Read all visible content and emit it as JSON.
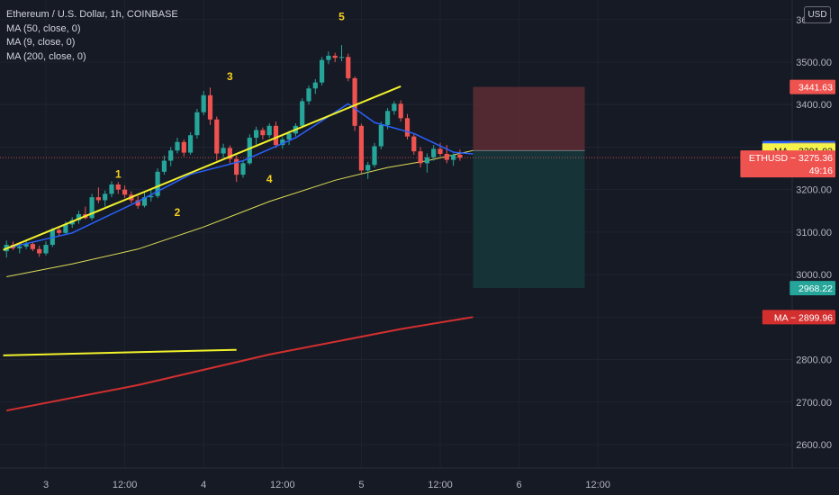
{
  "legend": {
    "title": "Ethereum / U.S. Dollar, 1h, COINBASE",
    "ma1": "MA (50, close, 0)",
    "ma2": "MA (9, close, 0)",
    "ma3": "MA (200, close, 0)"
  },
  "currency_button": "USD",
  "colors": {
    "background": "#161a25",
    "grid": "#1f2330",
    "text": "#b2b5be",
    "up": "#26a69a",
    "down": "#ef5350",
    "ma9": "#2962ff",
    "ma50": "#dcdc54",
    "ma200": "#d32f2f",
    "trendline": "#f2f22a",
    "wave_label": "#f5d020",
    "stop_zone": "#5d2d33",
    "target_zone": "#16363a"
  },
  "chart_data": {
    "type": "candlestick",
    "symbol": "ETHUSD",
    "interval": "1h",
    "exchange": "COINBASE",
    "ylim": [
      2550,
      3620
    ],
    "y_ticks": [
      {
        "label": "3600.00",
        "value": 3600
      },
      {
        "label": "3500.00",
        "value": 3500
      },
      {
        "label": "3400.00",
        "value": 3400
      },
      {
        "label": "3200.00",
        "value": 3200
      },
      {
        "label": "3100.00",
        "value": 3100
      },
      {
        "label": "3000.00",
        "value": 3000
      },
      {
        "label": "2800.00",
        "value": 2800
      },
      {
        "label": "2700.00",
        "value": 2700
      },
      {
        "label": "2600.00",
        "value": 2600
      }
    ],
    "x_ticks": [
      {
        "label": "3",
        "bar": 6
      },
      {
        "label": "12:00",
        "bar": 18
      },
      {
        "label": "4",
        "bar": 30
      },
      {
        "label": "12:00",
        "bar": 42
      },
      {
        "label": "5",
        "bar": 54
      },
      {
        "label": "12:00",
        "bar": 66
      },
      {
        "label": "6",
        "bar": 78
      },
      {
        "label": "12:00",
        "bar": 90
      }
    ],
    "candles": [
      [
        3055,
        3080,
        3040,
        3070
      ],
      [
        3070,
        3078,
        3058,
        3062
      ],
      [
        3062,
        3075,
        3050,
        3066
      ],
      [
        3066,
        3082,
        3060,
        3072
      ],
      [
        3072,
        3076,
        3055,
        3060
      ],
      [
        3060,
        3068,
        3042,
        3050
      ],
      [
        3050,
        3078,
        3045,
        3070
      ],
      [
        3070,
        3110,
        3065,
        3105
      ],
      [
        3105,
        3112,
        3092,
        3098
      ],
      [
        3098,
        3125,
        3094,
        3118
      ],
      [
        3118,
        3135,
        3110,
        3128
      ],
      [
        3128,
        3150,
        3120,
        3142
      ],
      [
        3142,
        3160,
        3130,
        3133
      ],
      [
        3133,
        3190,
        3128,
        3182
      ],
      [
        3182,
        3205,
        3168,
        3175
      ],
      [
        3175,
        3198,
        3160,
        3190
      ],
      [
        3190,
        3220,
        3182,
        3212
      ],
      [
        3212,
        3218,
        3190,
        3200
      ],
      [
        3200,
        3210,
        3180,
        3188
      ],
      [
        3188,
        3196,
        3168,
        3175
      ],
      [
        3175,
        3185,
        3155,
        3162
      ],
      [
        3162,
        3195,
        3158,
        3182
      ],
      [
        3182,
        3200,
        3172,
        3185
      ],
      [
        3185,
        3250,
        3180,
        3242
      ],
      [
        3242,
        3280,
        3235,
        3268
      ],
      [
        3268,
        3300,
        3255,
        3292
      ],
      [
        3292,
        3322,
        3285,
        3312
      ],
      [
        3312,
        3318,
        3278,
        3287
      ],
      [
        3287,
        3335,
        3282,
        3328
      ],
      [
        3328,
        3390,
        3320,
        3382
      ],
      [
        3382,
        3432,
        3375,
        3422
      ],
      [
        3422,
        3440,
        3352,
        3365
      ],
      [
        3365,
        3372,
        3268,
        3285
      ],
      [
        3285,
        3308,
        3275,
        3298
      ],
      [
        3298,
        3304,
        3262,
        3272
      ],
      [
        3272,
        3280,
        3218,
        3235
      ],
      [
        3235,
        3268,
        3228,
        3262
      ],
      [
        3262,
        3330,
        3258,
        3322
      ],
      [
        3322,
        3348,
        3306,
        3340
      ],
      [
        3340,
        3346,
        3318,
        3328
      ],
      [
        3328,
        3356,
        3322,
        3350
      ],
      [
        3350,
        3360,
        3298,
        3305
      ],
      [
        3305,
        3325,
        3296,
        3318
      ],
      [
        3318,
        3338,
        3305,
        3332
      ],
      [
        3332,
        3356,
        3325,
        3350
      ],
      [
        3350,
        3415,
        3345,
        3408
      ],
      [
        3408,
        3445,
        3400,
        3438
      ],
      [
        3438,
        3460,
        3425,
        3452
      ],
      [
        3452,
        3512,
        3445,
        3505
      ],
      [
        3505,
        3525,
        3495,
        3515
      ],
      [
        3515,
        3522,
        3500,
        3510
      ],
      [
        3510,
        3540,
        3502,
        3512
      ],
      [
        3512,
        3520,
        3455,
        3462
      ],
      [
        3462,
        3466,
        3338,
        3350
      ],
      [
        3350,
        3355,
        3238,
        3245
      ],
      [
        3245,
        3265,
        3225,
        3258
      ],
      [
        3258,
        3310,
        3252,
        3302
      ],
      [
        3302,
        3360,
        3295,
        3352
      ],
      [
        3352,
        3392,
        3342,
        3385
      ],
      [
        3385,
        3408,
        3376,
        3402
      ],
      [
        3402,
        3410,
        3360,
        3368
      ],
      [
        3368,
        3378,
        3318,
        3325
      ],
      [
        3325,
        3330,
        3282,
        3290
      ],
      [
        3290,
        3300,
        3252,
        3262
      ],
      [
        3262,
        3285,
        3240,
        3276
      ],
      [
        3276,
        3305,
        3268,
        3296
      ],
      [
        3296,
        3310,
        3278,
        3284
      ],
      [
        3284,
        3305,
        3262,
        3270
      ],
      [
        3270,
        3285,
        3256,
        3282
      ],
      [
        3282,
        3294,
        3268,
        3275
      ]
    ],
    "ma9": [
      [
        0,
        3062
      ],
      [
        10,
        3098
      ],
      [
        20,
        3172
      ],
      [
        28,
        3236
      ],
      [
        36,
        3268
      ],
      [
        44,
        3322
      ],
      [
        52,
        3402
      ],
      [
        56,
        3358
      ],
      [
        62,
        3332
      ],
      [
        68,
        3288
      ],
      [
        71,
        3284
      ]
    ],
    "ma50": [
      [
        0,
        2995
      ],
      [
        10,
        3025
      ],
      [
        20,
        3060
      ],
      [
        30,
        3112
      ],
      [
        40,
        3172
      ],
      [
        50,
        3222
      ],
      [
        58,
        3252
      ],
      [
        64,
        3268
      ],
      [
        71,
        3292
      ]
    ],
    "ma200": [
      [
        0,
        2680
      ],
      [
        20,
        2740
      ],
      [
        40,
        2812
      ],
      [
        60,
        2872
      ],
      [
        71,
        2900
      ]
    ],
    "trendlines": [
      {
        "x1": -0.5,
        "y1": 3058,
        "x2": 60,
        "y2": 3443
      },
      {
        "x1": -0.5,
        "y1": 2810,
        "x2": 35,
        "y2": 2823
      }
    ],
    "wave_labels": [
      {
        "label": "1",
        "bar": 17,
        "value": 3228
      },
      {
        "label": "2",
        "bar": 26,
        "value": 3138
      },
      {
        "label": "3",
        "bar": 34,
        "value": 3458
      },
      {
        "label": "4",
        "bar": 40,
        "value": 3216
      },
      {
        "label": "5",
        "bar": 51,
        "value": 3598
      }
    ],
    "position": {
      "bar_start": 71,
      "bar_end": 88,
      "entry": 3291.92,
      "stop": 3441.63,
      "target": 2968.22
    },
    "current_price": 3275.36,
    "price_labels": [
      {
        "text": "3441.63",
        "value": 3441.63,
        "color": "#ef5350"
      },
      {
        "text": "MA − 3297.42",
        "value": 3297.42,
        "color": "#2962ff"
      },
      {
        "text": "3294.57",
        "value": 3294.57,
        "color": "#787b86"
      },
      {
        "text": "MA − 3291.92",
        "value": 3291.92,
        "color": "#f5f24a",
        "dark": true
      },
      {
        "text": "ETHUSD − 3275.36",
        "value": 3275.36,
        "color": "#ef5350",
        "sub": "49:16"
      },
      {
        "text": "2968.22",
        "value": 2968.22,
        "color": "#26a69a"
      },
      {
        "text": "MA − 2899.96",
        "value": 2899.96,
        "color": "#d32f2f"
      }
    ]
  }
}
